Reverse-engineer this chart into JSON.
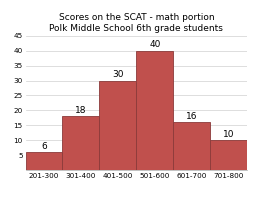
{
  "title_line1": "Scores on the SCAT - math portion",
  "title_line2": "Polk Middle School 6th grade students",
  "categories": [
    "201-300",
    "301-400",
    "401-500",
    "501-600",
    "601-700",
    "701-800"
  ],
  "values": [
    6,
    18,
    30,
    40,
    16,
    10
  ],
  "bar_color": "#c0504d",
  "bar_edge_color": "#8b3a3a",
  "ylim": [
    0,
    45
  ],
  "yticks": [
    5,
    10,
    15,
    20,
    25,
    30,
    35,
    40,
    45
  ],
  "background_color": "#ffffff",
  "grid_color": "#d0d0d0",
  "title_fontsize": 6.5,
  "tick_fontsize": 5.2,
  "label_fontsize": 6.5
}
